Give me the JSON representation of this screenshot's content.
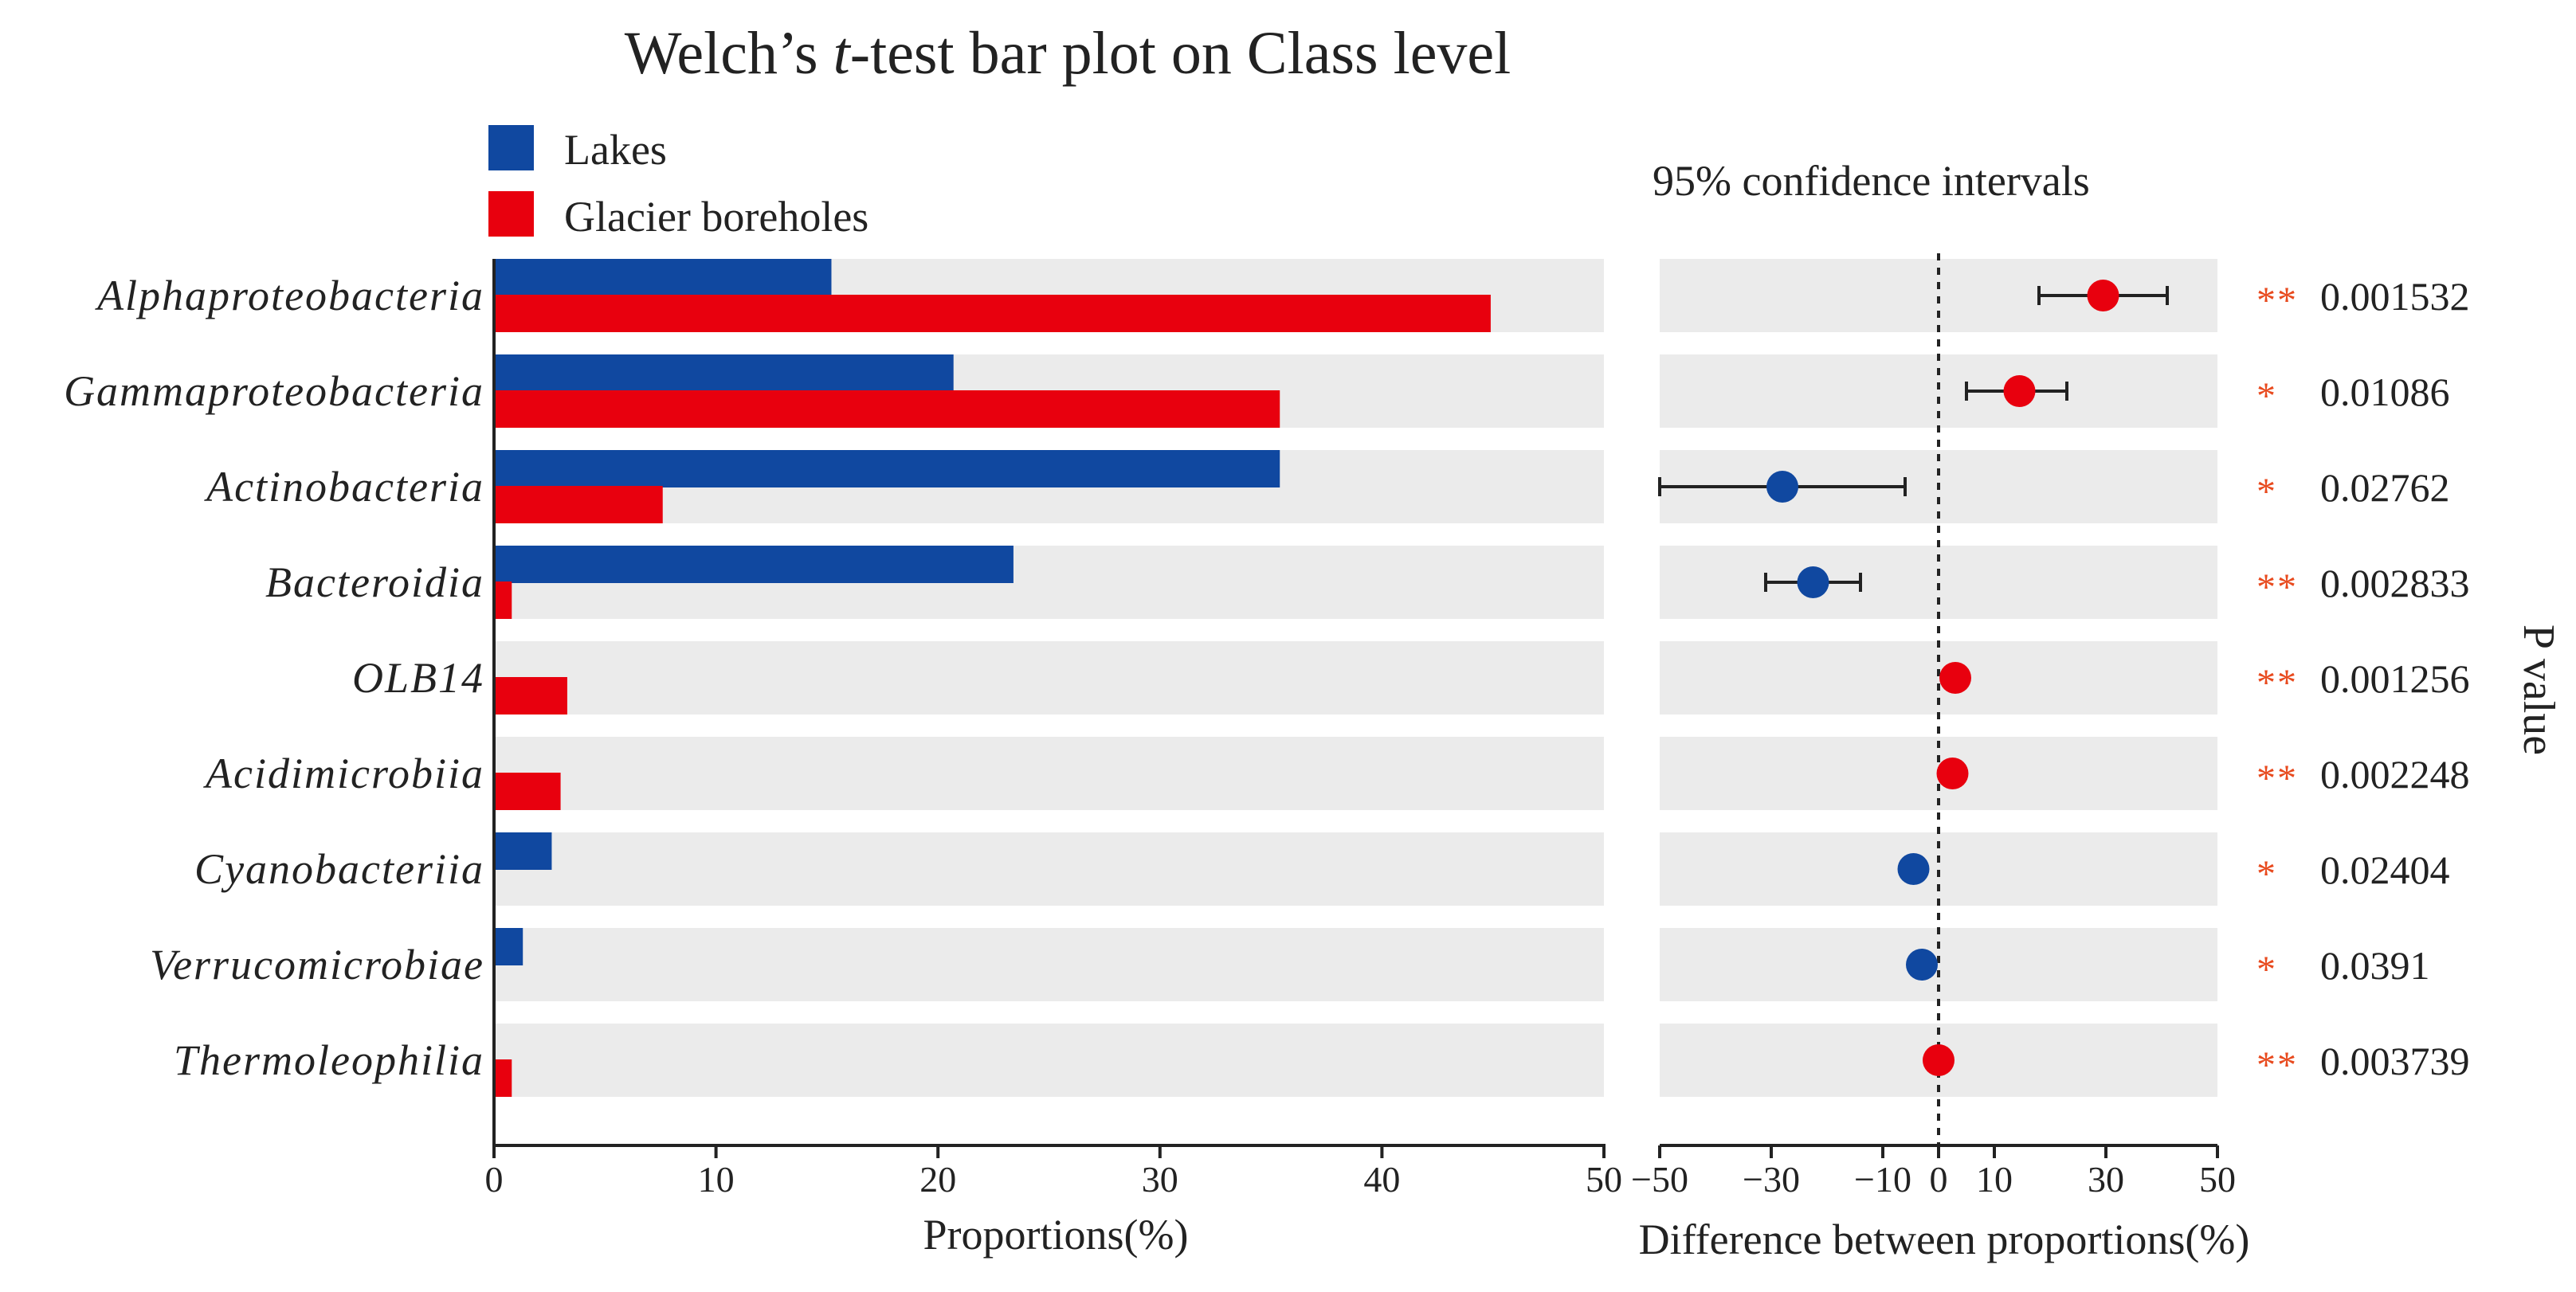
{
  "chart_data": {
    "type": "bar",
    "title_prefix": "Welch’s ",
    "title_italic": "t",
    "title_suffix": "-test bar plot on Class level",
    "legend": [
      {
        "name": "Lakes",
        "color": "#1048a0"
      },
      {
        "name": "Glacier boreholes",
        "color": "#e8000e"
      }
    ],
    "categories": [
      "Alphaproteobacteria",
      "Gammaproteobacteria",
      "Actinobacteria",
      "Bacteroidia",
      "OLB14",
      "Acidimicrobiia",
      "Cyanobacteriia",
      "Verrucomicrobiae",
      "Thermoleophilia"
    ],
    "series": [
      {
        "name": "Lakes",
        "values": [
          15.2,
          20.7,
          35.4,
          23.4,
          0,
          0,
          2.6,
          1.3,
          0
        ]
      },
      {
        "name": "Glacier boreholes",
        "values": [
          44.9,
          35.4,
          7.6,
          0.8,
          3.3,
          3.0,
          0,
          0,
          0.8
        ]
      }
    ],
    "xlabel": "Proportions(%)",
    "xlim": [
      0,
      50
    ],
    "xticks": [
      0,
      10,
      20,
      30,
      40,
      50
    ],
    "ci_panel": {
      "title": "95%  confidence intervals",
      "xlabel": "Difference between proportions(%)",
      "xlim": [
        -50,
        50
      ],
      "xticks": [
        -50,
        -30,
        -10,
        0,
        10,
        30,
        50
      ],
      "xtick_labels": [
        "−50",
        "−30",
        "−10",
        "0",
        "10",
        "30",
        "50"
      ],
      "points": [
        {
          "diff": 29.5,
          "low": 18,
          "high": 41,
          "color": "#e8000e"
        },
        {
          "diff": 14.5,
          "low": 5,
          "high": 23,
          "color": "#e8000e"
        },
        {
          "diff": -28,
          "low": -50,
          "high": -6,
          "color": "#1048a0"
        },
        {
          "diff": -22.5,
          "low": -31,
          "high": -14,
          "color": "#1048a0"
        },
        {
          "diff": 3.0,
          "low": null,
          "high": null,
          "color": "#e8000e"
        },
        {
          "diff": 2.5,
          "low": null,
          "high": null,
          "color": "#e8000e"
        },
        {
          "diff": -4.5,
          "low": null,
          "high": null,
          "color": "#1048a0"
        },
        {
          "diff": -3.0,
          "low": null,
          "high": null,
          "color": "#1048a0"
        },
        {
          "diff": 0,
          "low": null,
          "high": null,
          "color": "#e8000e"
        }
      ]
    },
    "pvalue_label": "P value",
    "pvalues": [
      "0.001532",
      "0.01086",
      "0.02762",
      "0.002833",
      "0.001256",
      "0.002248",
      "0.02404",
      "0.0391",
      "0.003739"
    ],
    "significance": [
      "**",
      "*",
      "*",
      "**",
      "**",
      "**",
      "*",
      "*",
      "**"
    ],
    "colors": {
      "lakes": "#1048a0",
      "glacier": "#e8000e",
      "row_bg": "#ebebeb",
      "star": "#e84a1e",
      "text": "#222222"
    }
  }
}
